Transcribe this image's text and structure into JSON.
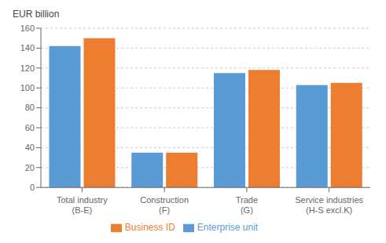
{
  "chart_data": {
    "type": "bar",
    "ylabel": "EUR billion",
    "categories": [
      "Total industry\n(B-E)",
      "Construction\n(F)",
      "Trade\n(G)",
      "Service industries\n(H-S excl.K)"
    ],
    "series": [
      {
        "name": "Enterprise unit",
        "color": "#5B9BD5",
        "values": [
          142,
          35,
          115,
          103
        ]
      },
      {
        "name": "Business ID",
        "color": "#ED7D31",
        "values": [
          150,
          35,
          118,
          105
        ]
      }
    ],
    "ylim": [
      0,
      160
    ],
    "yticks": [
      0,
      20,
      40,
      60,
      80,
      100,
      120,
      140,
      160
    ],
    "grid": true,
    "legend": "bottom"
  }
}
